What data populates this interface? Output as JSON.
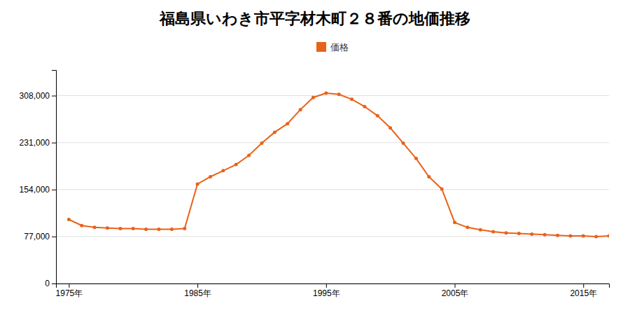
{
  "chart_data": {
    "type": "line",
    "title": "福島県いわき市平字材木町２８番の地価推移",
    "x": [
      1975,
      1976,
      1977,
      1978,
      1979,
      1980,
      1981,
      1982,
      1983,
      1984,
      1985,
      1986,
      1987,
      1988,
      1989,
      1990,
      1991,
      1992,
      1993,
      1994,
      1995,
      1996,
      1997,
      1998,
      1999,
      2000,
      2001,
      2002,
      2003,
      2004,
      2005,
      2006,
      2007,
      2008,
      2009,
      2010,
      2011,
      2012,
      2013,
      2014,
      2015,
      2016,
      2017
    ],
    "series": [
      {
        "name": "価格",
        "color": "#e8631a",
        "marker": "circle",
        "values": [
          105000,
          95000,
          92000,
          91000,
          90000,
          90000,
          89000,
          89000,
          89000,
          90000,
          163000,
          175000,
          185000,
          195000,
          210000,
          230000,
          248000,
          262000,
          285000,
          305000,
          312000,
          310000,
          302000,
          290000,
          275000,
          255000,
          230000,
          205000,
          175000,
          155000,
          100000,
          92000,
          88000,
          85000,
          83000,
          82000,
          81000,
          80000,
          79000,
          78000,
          78000,
          77000,
          78000
        ]
      }
    ],
    "xlim": [
      1974,
      2017
    ],
    "xticks": [
      {
        "value": 1975,
        "label": "1975年"
      },
      {
        "value": 1985,
        "label": "1985年"
      },
      {
        "value": 1995,
        "label": "1995年"
      },
      {
        "value": 2005,
        "label": "2005年"
      },
      {
        "value": 2015,
        "label": "2015年"
      }
    ],
    "ylim": [
      0,
      350000
    ],
    "yticks": [
      0,
      {
        "value": 77000,
        "label": "77,000"
      },
      {
        "value": 154000,
        "label": "154,000"
      },
      {
        "value": 231000,
        "label": "231,000"
      },
      {
        "value": 308000,
        "label": "308,000"
      }
    ],
    "grid": true,
    "legend": "top"
  }
}
